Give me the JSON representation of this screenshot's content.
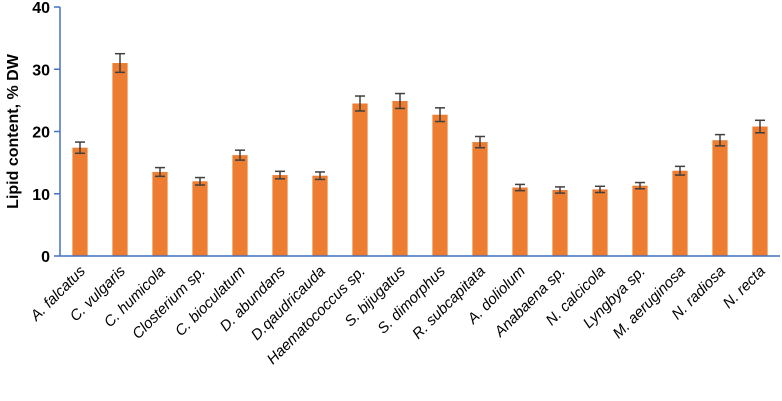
{
  "chart_data": {
    "type": "bar",
    "title": "",
    "xlabel": "",
    "ylabel": "Lipid content, % DW",
    "ylim": [
      0,
      40
    ],
    "yticks": [
      0,
      10,
      20,
      30,
      40
    ],
    "grid": false,
    "legend": "none",
    "bar_color": "#ED7D31",
    "axis_color": "#4472C4",
    "errorbar_color": "#404040",
    "categories": [
      "A. falcatus",
      "C. vulgaris",
      "C. humicola",
      "Closterium sp.",
      "C. bioculatum",
      "D. abundans",
      "D.qaudricauda",
      "Haematococcus sp.",
      "S. bijugatus",
      "S. dimorphus",
      "R. subcapitata",
      "A. doliolum",
      "Anabaena sp.",
      "N. calcicola",
      "Lyngbya sp.",
      "M. aeruginosa",
      "N. radiosa",
      "N. recta"
    ],
    "series": [
      {
        "values": [
          17.4,
          31.0,
          13.5,
          12.0,
          16.2,
          13.0,
          12.9,
          24.5,
          24.9,
          22.7,
          18.3,
          11.0,
          10.6,
          10.7,
          11.3,
          13.7,
          18.6,
          20.8
        ],
        "errors": [
          0.9,
          1.5,
          0.7,
          0.6,
          0.8,
          0.6,
          0.6,
          1.2,
          1.2,
          1.1,
          0.9,
          0.5,
          0.5,
          0.5,
          0.5,
          0.7,
          0.9,
          1.0
        ]
      }
    ]
  }
}
